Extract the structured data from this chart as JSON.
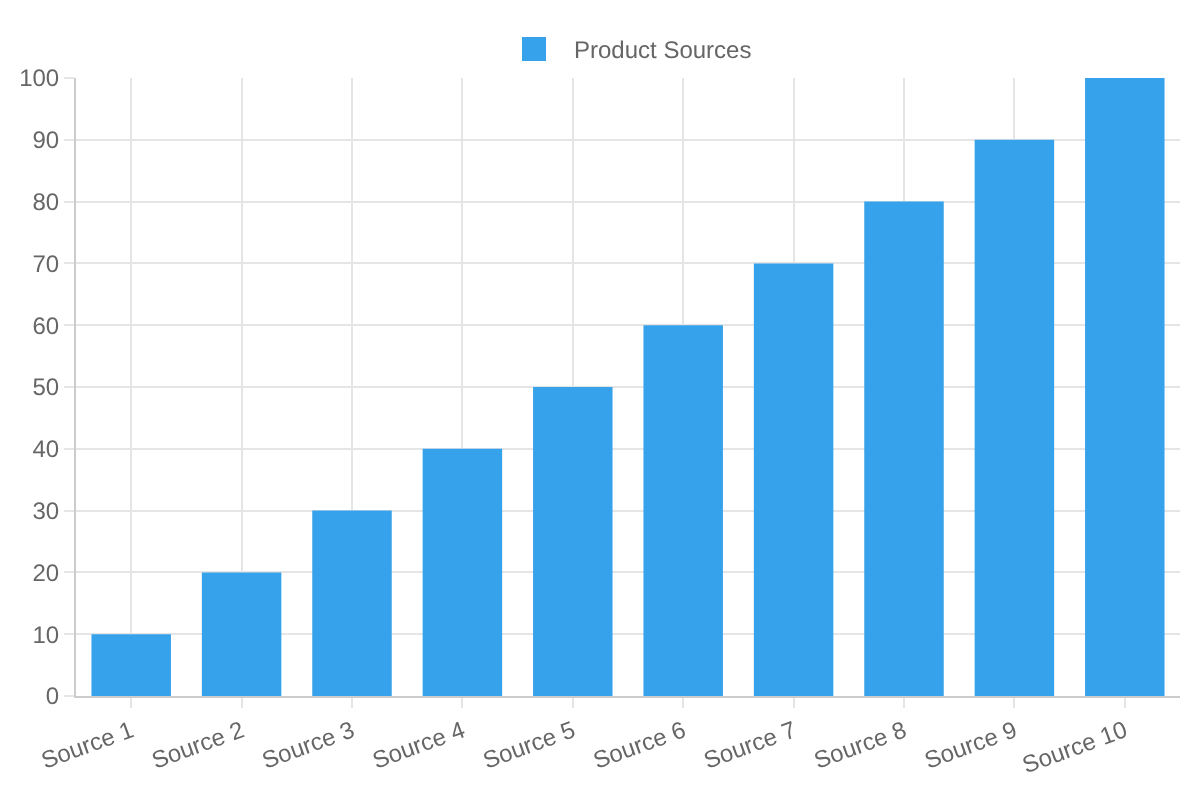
{
  "chart_data": {
    "type": "bar",
    "categories": [
      "Source 1",
      "Source 2",
      "Source 3",
      "Source 4",
      "Source 5",
      "Source 6",
      "Source 7",
      "Source 8",
      "Source 9",
      "Source 10"
    ],
    "series": [
      {
        "name": "Product Sources",
        "color": "#36a2eb",
        "values": [
          10,
          20,
          30,
          40,
          50,
          60,
          70,
          80,
          90,
          100
        ]
      }
    ],
    "ylim": [
      0,
      100
    ],
    "yticks": [
      0,
      10,
      20,
      30,
      40,
      50,
      60,
      70,
      80,
      90,
      100
    ],
    "grid": true,
    "legend": "top"
  }
}
